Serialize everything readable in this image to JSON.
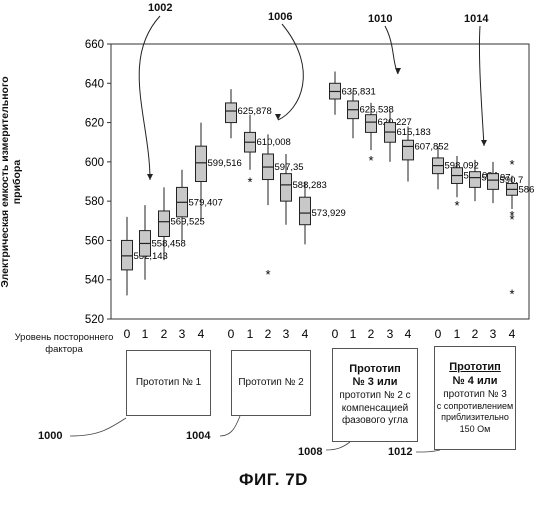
{
  "chart_data": {
    "type": "boxplot",
    "ylabel": "Электрическая емкость измерительного прибора",
    "xlabel": "Уровень постороннего фактора",
    "ylim": [
      520,
      660
    ],
    "yticks": [
      520,
      540,
      560,
      580,
      600,
      620,
      640,
      660
    ],
    "grid": false,
    "groups": [
      {
        "caption": [
          "Прототип № 1"
        ],
        "levels": [
          "0",
          "1",
          "2",
          "3",
          "4"
        ],
        "boxes": [
          {
            "median": 552.143,
            "label": "552,143",
            "q1": 545,
            "q3": 560,
            "low": 532,
            "high": 572,
            "outliers": []
          },
          {
            "median": 558.458,
            "label": "558,458",
            "q1": 552,
            "q3": 565,
            "low": 540,
            "high": 578,
            "outliers": []
          },
          {
            "median": 569.525,
            "label": "569,525",
            "q1": 562,
            "q3": 575,
            "low": 550,
            "high": 587,
            "outliers": []
          },
          {
            "median": 579.407,
            "label": "579,407",
            "q1": 572,
            "q3": 587,
            "low": 560,
            "high": 596,
            "outliers": []
          },
          {
            "median": 599.516,
            "label": "599,516",
            "q1": 590,
            "q3": 608,
            "low": 570,
            "high": 620,
            "outliers": []
          }
        ]
      },
      {
        "caption": [
          "Прототип № 2"
        ],
        "levels": [
          "0",
          "1",
          "2",
          "3",
          "4"
        ],
        "boxes": [
          {
            "median": 625.878,
            "label": "625,878",
            "q1": 620,
            "q3": 630,
            "low": 612,
            "high": 637,
            "outliers": []
          },
          {
            "median": 610.008,
            "label": "610,008",
            "q1": 605,
            "q3": 615,
            "low": 596,
            "high": 624,
            "outliers": [
              590
            ]
          },
          {
            "median": 597.35,
            "label": "597,35",
            "q1": 591,
            "q3": 604,
            "low": 578,
            "high": 614,
            "outliers": [
              543
            ]
          },
          {
            "median": 588.283,
            "label": "588,283",
            "q1": 580,
            "q3": 594,
            "low": 568,
            "high": 604,
            "outliers": []
          },
          {
            "median": 573.929,
            "label": "573,929",
            "q1": 568,
            "q3": 582,
            "low": 558,
            "high": 590,
            "outliers": []
          }
        ]
      },
      {
        "caption": [
          "Прототип",
          "№ 3 или",
          "прототип № 2 с",
          "компенсацией",
          "фазового угла"
        ],
        "levels": [
          "0",
          "1",
          "2",
          "3",
          "4"
        ],
        "boxes": [
          {
            "median": 635.831,
            "label": "635,831",
            "q1": 632,
            "q3": 640,
            "low": 624,
            "high": 646,
            "outliers": []
          },
          {
            "median": 626.538,
            "label": "626,538",
            "q1": 622,
            "q3": 631,
            "low": 612,
            "high": 636,
            "outliers": []
          },
          {
            "median": 620.227,
            "label": "620,227",
            "q1": 615,
            "q3": 624,
            "low": 606,
            "high": 630,
            "outliers": [
              601
            ]
          },
          {
            "median": 615.183,
            "label": "615,183",
            "q1": 610,
            "q3": 620,
            "low": 600,
            "high": 626,
            "outliers": []
          },
          {
            "median": 607.852,
            "label": "607,852",
            "q1": 601,
            "q3": 611,
            "low": 590,
            "high": 618,
            "outliers": []
          }
        ]
      },
      {
        "caption": [
          "Прототип",
          "№ 4 или",
          "прототип № 3",
          "с сопротивлением",
          "приблизительно",
          "150 Ом"
        ],
        "levels": [
          "0",
          "1",
          "2",
          "3",
          "4"
        ],
        "boxes": [
          {
            "median": 598.092,
            "label": "598,092",
            "q1": 594,
            "q3": 602,
            "low": 586,
            "high": 608,
            "outliers": []
          },
          {
            "median": 593.034,
            "label": "593,034",
            "q1": 589,
            "q3": 597,
            "low": 582,
            "high": 603,
            "outliers": [
              578
            ]
          },
          {
            "median": 591.97,
            "label": "591,97",
            "q1": 587,
            "q3": 595,
            "low": 580,
            "high": 601,
            "outliers": []
          },
          {
            "median": 590.7,
            "label": "590,7",
            "q1": 586,
            "q3": 594,
            "low": 579,
            "high": 600,
            "outliers": []
          },
          {
            "median": 586.0,
            "label": "586",
            "q1": 583,
            "q3": 589,
            "low": 576,
            "high": 593,
            "outliers": [
              599,
              573,
              571,
              533
            ]
          }
        ]
      }
    ]
  },
  "reference_numerals": {
    "curve_1002": "1002",
    "curve_1006": "1006",
    "curve_1010": "1010",
    "curve_1014": "1014",
    "box_1000": "1000",
    "box_1004": "1004",
    "box_1008": "1008",
    "box_1012": "1012"
  },
  "figure_caption": "ФИГ. 7D",
  "colors": {
    "box_fill": "#c8c8c8",
    "stroke": "#222222"
  }
}
